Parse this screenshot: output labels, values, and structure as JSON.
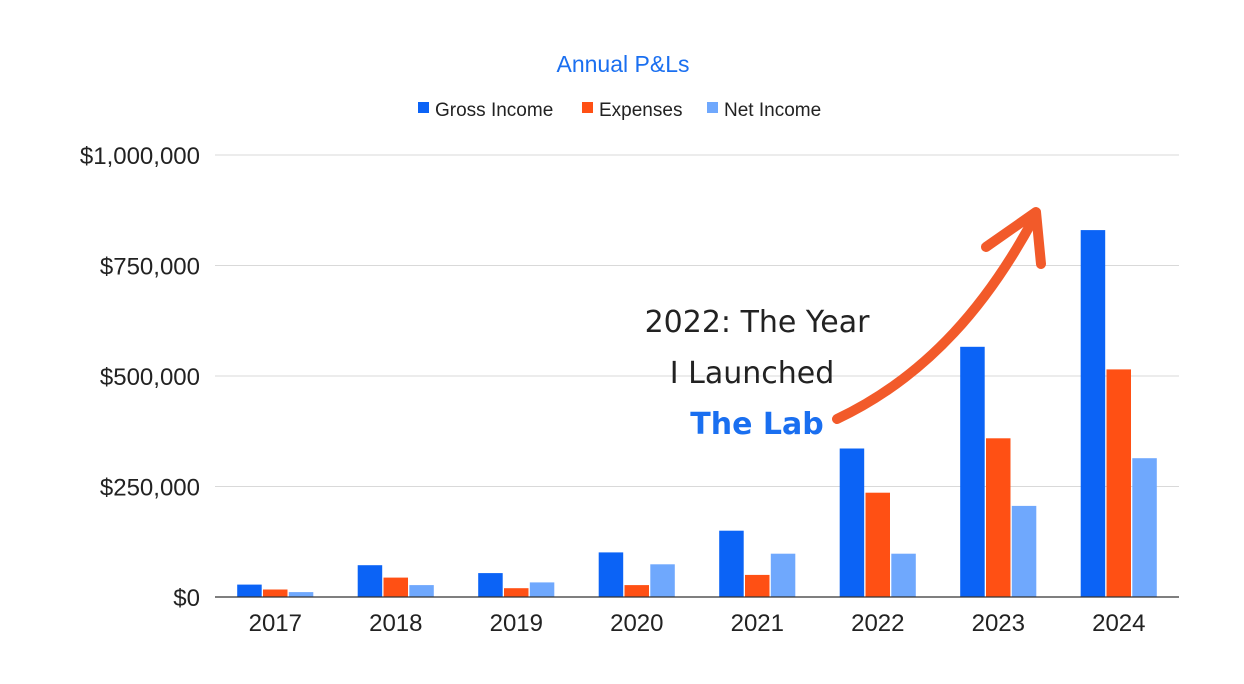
{
  "chart_data": {
    "type": "bar",
    "title": "Annual P&Ls",
    "categories": [
      "2017",
      "2018",
      "2019",
      "2020",
      "2021",
      "2022",
      "2023",
      "2024"
    ],
    "series": [
      {
        "name": "Gross Income",
        "color": "#0b63f6",
        "values": [
          28000,
          72000,
          54000,
          101000,
          150000,
          336000,
          566000,
          830000
        ]
      },
      {
        "name": "Expenses",
        "color": "#ff5014",
        "values": [
          17000,
          44000,
          20000,
          27000,
          50000,
          236000,
          359000,
          515000
        ]
      },
      {
        "name": "Net Income",
        "color": "#6fa8fd",
        "values": [
          11000,
          27000,
          33000,
          74000,
          98000,
          98000,
          206000,
          314000
        ]
      }
    ],
    "ylim": [
      0,
      1000000
    ],
    "yticks": [
      0,
      250000,
      500000,
      750000,
      1000000
    ],
    "ytick_labels": [
      "$0",
      "$250,000",
      "$500,000",
      "$750,000",
      "$1,000,000"
    ],
    "xlabel": "",
    "ylabel": "",
    "grid": true,
    "legend_position": "top-center",
    "annotation": {
      "lines": [
        "2022: The Year",
        "I Launched"
      ],
      "highlight": "The Lab",
      "arrow_color": "#f25a2a"
    }
  }
}
